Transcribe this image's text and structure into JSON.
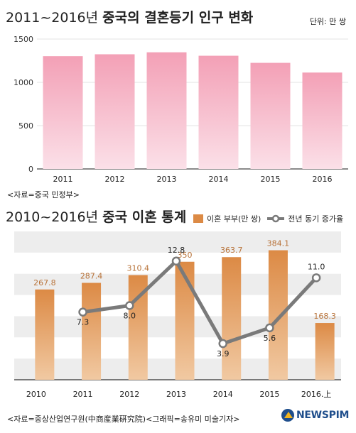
{
  "chart1": {
    "title_range": "2011~2016년",
    "title_main": "중국의 결혼등기 인구 변화",
    "unit": "단위: 만 쌍",
    "source": "<자료=중국 민정부>"
  },
  "chart2": {
    "title_range": "2010~2016년",
    "title_main": "중국 이혼 통계",
    "legend_bar": "이혼 부부(만 쌍)",
    "legend_line": "전년 동기 증가율",
    "source": "<자료=중상산업연구원(中商産業硏究院)<그래픽=송유미 미술기자>"
  },
  "brand": {
    "logo_text": "NEWSPIM"
  },
  "colors": {
    "pink_top": "#f3a0b6",
    "pink_bottom": "#fbe0e8",
    "orange_top": "#dc8a45",
    "orange_bottom": "#f1c9a2",
    "line": "#7a7a7a",
    "stripe": "#ededed",
    "value_label": "#b8733a",
    "logo_blue": "#1f4e8c",
    "logo_yellow": "#f2b31f"
  },
  "chart_data": [
    {
      "type": "bar",
      "title": "2011~2016년 중국의 결혼등기 인구 변화",
      "categories": [
        "2011",
        "2012",
        "2013",
        "2014",
        "2015",
        "2016"
      ],
      "values": [
        1302,
        1324,
        1347,
        1307,
        1225,
        1113
      ],
      "ylim": [
        0,
        1500
      ],
      "yticks": [
        "0",
        "500",
        "1000",
        "1500"
      ],
      "grid": true
    },
    {
      "type": "bar",
      "title": "2010~2016년 중국 이혼 통계",
      "categories": [
        "2010",
        "2011",
        "2012",
        "2013",
        "2014",
        "2015",
        "2016.上"
      ],
      "series": [
        {
          "name": "이혼 부부(만 쌍)",
          "type": "bar",
          "values": [
            267.8,
            287.4,
            310.4,
            350,
            363.7,
            384.1,
            168.3
          ],
          "labels": [
            "267.8",
            "287.4",
            "310.4",
            "350",
            "363.7",
            "384.1",
            "168.3"
          ]
        },
        {
          "name": "전년 동기 증가율",
          "type": "line",
          "x": [
            "2011",
            "2012",
            "2013",
            "2014",
            "2015",
            "2016.上"
          ],
          "values": [
            7.3,
            8.0,
            12.8,
            3.9,
            5.6,
            11.0
          ],
          "labels": [
            "7.3",
            "8.0",
            "12.8",
            "3.9",
            "5.6",
            "11.0"
          ]
        }
      ],
      "legend": "top-right"
    }
  ]
}
